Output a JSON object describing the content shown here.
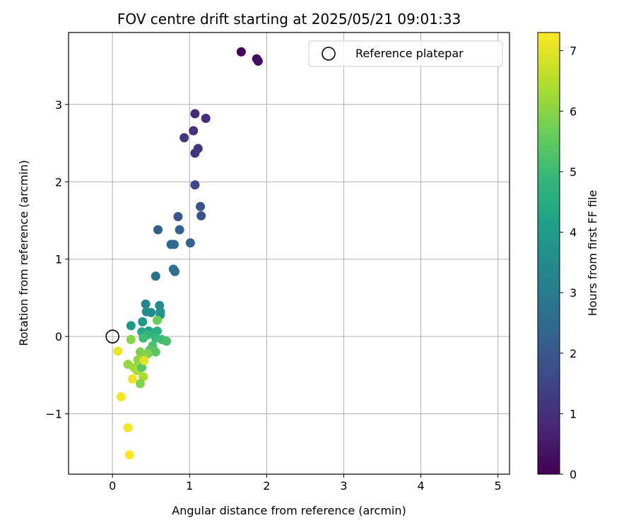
{
  "chart_data": {
    "type": "scatter",
    "title": "FOV centre drift starting at 2025/05/21 09:01:33",
    "xlabel": "Angular distance from reference (arcmin)",
    "ylabel": "Rotation from reference (arcmin)",
    "colorbar_label": "Hours from first FF file",
    "colormap": "viridis",
    "xlim": [
      -0.57,
      5.15
    ],
    "ylim": [
      -1.78,
      3.93
    ],
    "x_ticks": [
      0,
      1,
      2,
      3,
      4,
      5
    ],
    "x_tick_labels": [
      "0",
      "1",
      "2",
      "3",
      "4",
      "5"
    ],
    "y_ticks": [
      -1,
      0,
      1,
      2,
      3
    ],
    "y_tick_labels": [
      "−1",
      "0",
      "1",
      "2",
      "3"
    ],
    "color_range": [
      0,
      7.3
    ],
    "colorbar_ticks": [
      0,
      1,
      2,
      3,
      4,
      5,
      6,
      7
    ],
    "colorbar_tick_labels": [
      "0",
      "1",
      "2",
      "3",
      "4",
      "5",
      "6",
      "7"
    ],
    "grid": true,
    "legend": {
      "position": "top-right",
      "entries": [
        "Reference platepar"
      ]
    },
    "reference_point": {
      "x": 0.0,
      "y": 0.0
    },
    "points": [
      {
        "x": 1.67,
        "y": 3.68,
        "hours": 0.0
      },
      {
        "x": 1.87,
        "y": 3.59,
        "hours": 0.2
      },
      {
        "x": 1.89,
        "y": 3.56,
        "hours": 0.3
      },
      {
        "x": 1.07,
        "y": 2.88,
        "hours": 0.9
      },
      {
        "x": 1.21,
        "y": 2.82,
        "hours": 0.9
      },
      {
        "x": 1.05,
        "y": 2.66,
        "hours": 1.0
      },
      {
        "x": 0.93,
        "y": 2.57,
        "hours": 1.1
      },
      {
        "x": 1.11,
        "y": 2.43,
        "hours": 1.1
      },
      {
        "x": 1.07,
        "y": 2.37,
        "hours": 1.2
      },
      {
        "x": 1.07,
        "y": 1.96,
        "hours": 1.6
      },
      {
        "x": 1.14,
        "y": 1.68,
        "hours": 1.9
      },
      {
        "x": 1.15,
        "y": 1.56,
        "hours": 1.9
      },
      {
        "x": 0.85,
        "y": 1.55,
        "hours": 2.0
      },
      {
        "x": 0.59,
        "y": 1.38,
        "hours": 2.2
      },
      {
        "x": 0.87,
        "y": 1.38,
        "hours": 2.2
      },
      {
        "x": 1.01,
        "y": 1.21,
        "hours": 2.3
      },
      {
        "x": 0.76,
        "y": 1.19,
        "hours": 2.4
      },
      {
        "x": 0.8,
        "y": 1.19,
        "hours": 2.5
      },
      {
        "x": 0.79,
        "y": 0.87,
        "hours": 2.7
      },
      {
        "x": 0.81,
        "y": 0.84,
        "hours": 2.7
      },
      {
        "x": 0.56,
        "y": 0.78,
        "hours": 2.8
      },
      {
        "x": 0.43,
        "y": 0.42,
        "hours": 3.3
      },
      {
        "x": 0.61,
        "y": 0.4,
        "hours": 3.5
      },
      {
        "x": 0.44,
        "y": 0.32,
        "hours": 3.5
      },
      {
        "x": 0.5,
        "y": 0.31,
        "hours": 3.6
      },
      {
        "x": 0.62,
        "y": 0.32,
        "hours": 3.7
      },
      {
        "x": 0.62,
        "y": 0.28,
        "hours": 3.8
      },
      {
        "x": 0.39,
        "y": 0.19,
        "hours": 3.8
      },
      {
        "x": 0.24,
        "y": 0.14,
        "hours": 3.9
      },
      {
        "x": 0.47,
        "y": 0.07,
        "hours": 4.1
      },
      {
        "x": 0.38,
        "y": 0.06,
        "hours": 4.3
      },
      {
        "x": 0.54,
        "y": 0.05,
        "hours": 4.5
      },
      {
        "x": 0.58,
        "y": 0.07,
        "hours": 4.6
      },
      {
        "x": 0.45,
        "y": 0.02,
        "hours": 4.8
      },
      {
        "x": 0.56,
        "y": -0.02,
        "hours": 4.9
      },
      {
        "x": 0.64,
        "y": -0.04,
        "hours": 5.0
      },
      {
        "x": 0.7,
        "y": -0.06,
        "hours": 5.1
      },
      {
        "x": 0.4,
        "y": -0.02,
        "hours": 5.0
      },
      {
        "x": 0.52,
        "y": -0.12,
        "hours": 5.2
      },
      {
        "x": 0.48,
        "y": -0.18,
        "hours": 5.4
      },
      {
        "x": 0.56,
        "y": -0.2,
        "hours": 5.4
      },
      {
        "x": 0.58,
        "y": 0.21,
        "hours": 5.6
      },
      {
        "x": 0.46,
        "y": -0.22,
        "hours": 5.8
      },
      {
        "x": 0.36,
        "y": -0.2,
        "hours": 5.8
      },
      {
        "x": 0.24,
        "y": -0.04,
        "hours": 6.0
      },
      {
        "x": 0.4,
        "y": -0.26,
        "hours": 6.0
      },
      {
        "x": 0.33,
        "y": -0.3,
        "hours": 6.1
      },
      {
        "x": 0.2,
        "y": -0.36,
        "hours": 6.1
      },
      {
        "x": 0.28,
        "y": -0.4,
        "hours": 6.2
      },
      {
        "x": 0.32,
        "y": -0.44,
        "hours": 6.3
      },
      {
        "x": 0.38,
        "y": -0.4,
        "hours": 5.4
      },
      {
        "x": 0.4,
        "y": -0.52,
        "hours": 6.4
      },
      {
        "x": 0.36,
        "y": -0.61,
        "hours": 5.9
      },
      {
        "x": 0.41,
        "y": -0.31,
        "hours": 7.0
      },
      {
        "x": 0.07,
        "y": -0.19,
        "hours": 7.1
      },
      {
        "x": 0.26,
        "y": -0.55,
        "hours": 7.1
      },
      {
        "x": 0.11,
        "y": -0.78,
        "hours": 7.2
      },
      {
        "x": 0.2,
        "y": -1.18,
        "hours": 7.2
      },
      {
        "x": 0.22,
        "y": -1.53,
        "hours": 7.3
      }
    ]
  }
}
